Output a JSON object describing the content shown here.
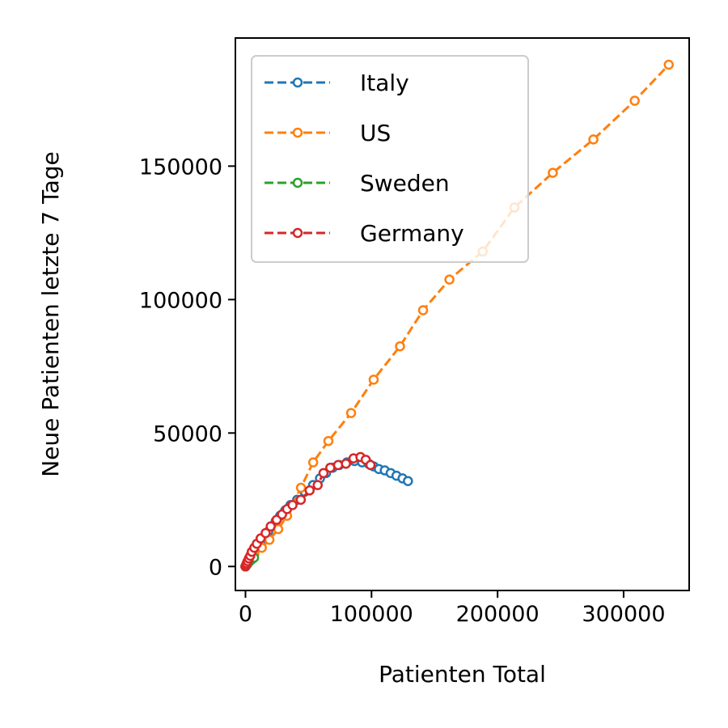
{
  "chart_data": {
    "type": "line",
    "title": "",
    "xlabel": "Patienten Total",
    "ylabel": "Neue Patienten letzte 7 Tage",
    "xlim": [
      -8000,
      352000
    ],
    "ylim": [
      -9000,
      198000
    ],
    "x_ticks": [
      0,
      100000,
      200000,
      300000
    ],
    "x_tick_labels": [
      "0",
      "100000",
      "200000",
      "300000"
    ],
    "y_ticks": [
      0,
      50000,
      100000,
      150000
    ],
    "y_tick_labels": [
      "0",
      "50000",
      "100000",
      "150000"
    ],
    "grid": false,
    "legend_position": "top-left",
    "line_style": "dashed",
    "marker": "open-circle",
    "series": [
      {
        "name": "Italy",
        "color": "#1f77b4",
        "x": [
          0,
          500,
          1200,
          2000,
          3000,
          4500,
          6000,
          8000,
          10000,
          12500,
          15000,
          18000,
          21000,
          24000,
          27500,
          31500,
          35700,
          41000,
          47000,
          53600,
          59100,
          63900,
          69200,
          74400,
          80500,
          86500,
          92500,
          97700,
          101700,
          105800,
          110500,
          115200,
          119800,
          124600,
          128900
        ],
        "y": [
          0,
          400,
          1000,
          1700,
          2600,
          3700,
          5000,
          6500,
          8000,
          9500,
          11000,
          13000,
          15000,
          17000,
          19000,
          21000,
          23000,
          25000,
          28000,
          30500,
          33000,
          35000,
          37000,
          38000,
          39000,
          39500,
          39000,
          38500,
          37500,
          36500,
          36000,
          35000,
          34000,
          33000,
          32000
        ]
      },
      {
        "name": "US",
        "color": "#ff7f0e",
        "x": [
          0,
          800,
          2000,
          4000,
          7000,
          13000,
          19000,
          26000,
          33000,
          44000,
          53700,
          65800,
          83800,
          101700,
          122600,
          140900,
          161800,
          188200,
          213400,
          243800,
          276000,
          308800,
          335800
        ],
        "y": [
          0,
          600,
          1500,
          2800,
          4500,
          7000,
          10000,
          14000,
          19000,
          29500,
          39000,
          47000,
          57500,
          70000,
          82500,
          96000,
          107500,
          118000,
          134500,
          147500,
          160000,
          174500,
          188000
        ]
      },
      {
        "name": "Sweden",
        "color": "#2ca02c",
        "x": [
          0,
          300,
          600,
          1000,
          1400,
          1800,
          2300,
          2800,
          3400,
          4000,
          4500,
          5000,
          5500,
          6100,
          6800
        ],
        "y": [
          0,
          200,
          400,
          700,
          900,
          1100,
          1400,
          1700,
          2000,
          2300,
          2500,
          2700,
          2900,
          3100,
          3300
        ]
      },
      {
        "name": "Germany",
        "color": "#d62728",
        "x": [
          0,
          500,
          1000,
          1800,
          2700,
          3800,
          5000,
          7000,
          9000,
          12000,
          16000,
          20000,
          24800,
          29000,
          33000,
          37300,
          43900,
          50900,
          57300,
          61900,
          67300,
          73500,
          79700,
          85700,
          91200,
          95400,
          99200
        ],
        "y": [
          0,
          500,
          1200,
          2000,
          3000,
          4000,
          5500,
          7000,
          8500,
          10500,
          12500,
          15000,
          17500,
          19500,
          21500,
          23000,
          25000,
          28500,
          30500,
          35000,
          37000,
          38000,
          38500,
          40500,
          41000,
          40000,
          38000
        ]
      }
    ]
  }
}
